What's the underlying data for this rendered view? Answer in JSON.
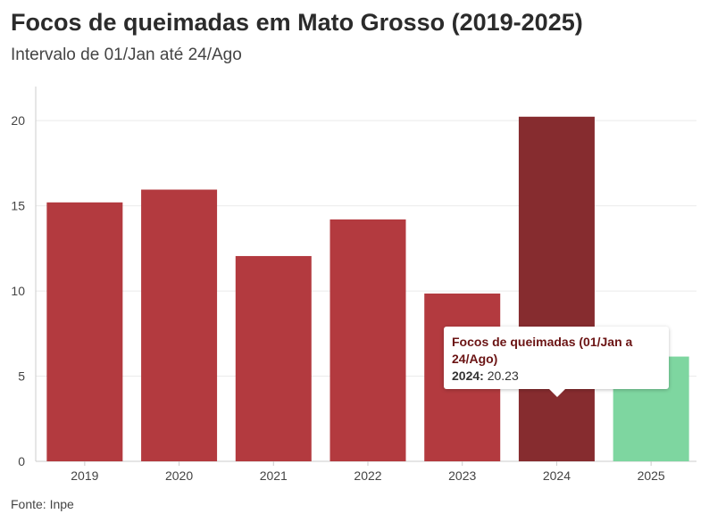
{
  "header": {
    "title": "Focos de queimadas em Mato Grosso (2019-2025)",
    "subtitle": "Intervalo de 01/Jan até 24/Ago"
  },
  "footer": {
    "source": "Fonte: Inpe"
  },
  "tooltip": {
    "title": "Focos de queimadas (01/Jan a 24/Ago)",
    "category": "2024:",
    "value": "20.23"
  },
  "chart_data": {
    "type": "bar",
    "title": "Focos de queimadas em Mato Grosso (2019-2025)",
    "subtitle": "Intervalo de 01/Jan até 24/Ago",
    "xlabel": "",
    "ylabel": "",
    "categories": [
      "2019",
      "2020",
      "2021",
      "2022",
      "2023",
      "2024",
      "2025"
    ],
    "series": [
      {
        "name": "Focos de queimadas (01/Jan a 24/Ago)",
        "values": [
          15.2,
          15.95,
          12.05,
          14.2,
          9.85,
          20.23,
          6.15
        ]
      }
    ],
    "ylim": [
      0,
      22
    ],
    "yticks": [
      0,
      5,
      10,
      15,
      20
    ],
    "grid": true,
    "colors": {
      "default": "#b33a3f",
      "highlighted": "#862c2f",
      "current_year": "#7ed6a0",
      "grid": "#ebebeb",
      "axis": "#cccccc"
    },
    "highlighted_category": "2024",
    "current_category": "2025"
  }
}
